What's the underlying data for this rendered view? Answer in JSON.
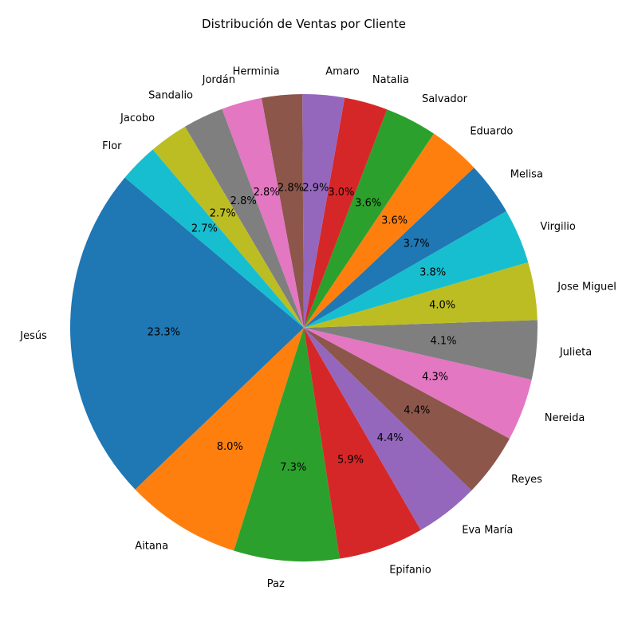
{
  "chart_data": {
    "type": "pie",
    "title": "Distribución de Ventas por Cliente",
    "labels": [
      "Jesús",
      "Aitana",
      "Paz",
      "Epifanio",
      "Eva María",
      "Reyes",
      "Nereida",
      "Julieta",
      "Jose Miguel",
      "Virgilio",
      "Melisa",
      "Eduardo",
      "Salvador",
      "Natalia",
      "Amaro",
      "Herminia",
      "Jordán",
      "Sandalio",
      "Jacobo",
      "Flor"
    ],
    "values": [
      23.3,
      8.0,
      7.3,
      5.9,
      4.4,
      4.4,
      4.3,
      4.1,
      4.0,
      3.8,
      3.7,
      3.6,
      3.6,
      3.0,
      2.9,
      2.8,
      2.8,
      2.8,
      2.7,
      2.7
    ],
    "value_labels": [
      "23.3%",
      "8.0%",
      "7.3%",
      "5.9%",
      "4.4%",
      "4.4%",
      "4.3%",
      "4.1%",
      "4.0%",
      "3.8%",
      "3.7%",
      "3.6%",
      "3.6%",
      "3.0%",
      "2.9%",
      "2.8%",
      "2.8%",
      "2.8%",
      "2.7%",
      "2.7%"
    ],
    "colors": [
      "#1f77b4",
      "#ff7f0e",
      "#2ca02c",
      "#d62728",
      "#9467bd",
      "#8c564b",
      "#e377c2",
      "#7f7f7f",
      "#bcbd22",
      "#17becf",
      "#1f77b4",
      "#ff7f0e",
      "#2ca02c",
      "#d62728",
      "#9467bd",
      "#8c564b",
      "#e377c2",
      "#7f7f7f",
      "#bcbd22",
      "#17becf"
    ],
    "start_angle_deg": 140,
    "direction": "counterclockwise",
    "legend": "none"
  }
}
